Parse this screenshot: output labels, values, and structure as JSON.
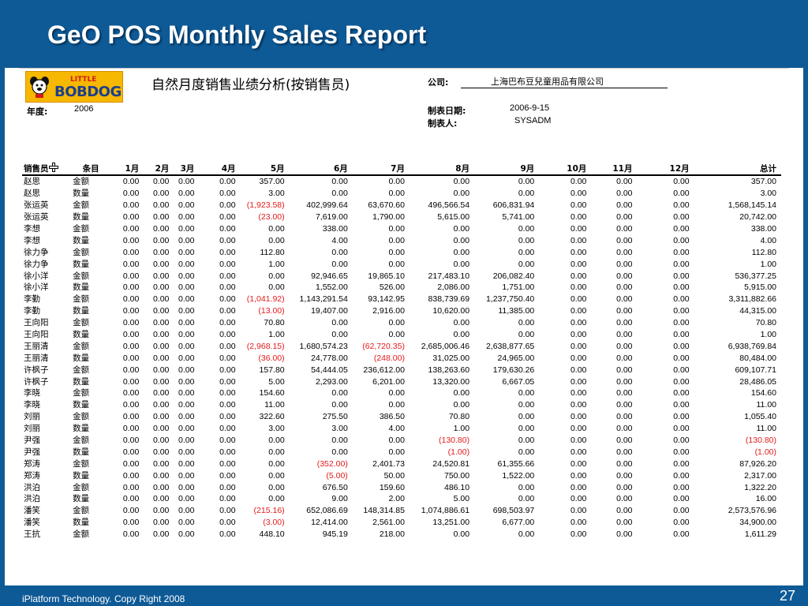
{
  "slide": {
    "title": "GeO POS Monthly Sales Report",
    "footer": "iPlatform Technology. Copy Right  2008",
    "page_number": "27",
    "colors": {
      "bar": "#0e5a96",
      "negative": "#e41b1b"
    }
  },
  "report": {
    "logo_little": "LITTLE",
    "logo_bobdog": "BOBDOG",
    "title": "自然月度销售业绩分析(按销售员)",
    "company_label": "公司:",
    "company_value": "上海巴布豆兒童用品有限公司",
    "year_label": "年度:",
    "year_value": "2006",
    "date_label": "制表日期:",
    "date_value": "2006-9-15",
    "maker_label": "制表人:",
    "maker_value": "SYSADM",
    "columns": [
      "销售员",
      "条目",
      "1月",
      "2月",
      "3月",
      "4月",
      "5月",
      "6月",
      "7月",
      "8月",
      "9月",
      "10月",
      "11月",
      "12月",
      "总计"
    ],
    "rows": [
      [
        "赵思",
        "金额",
        "0.00",
        "0.00",
        "0.00",
        "0.00",
        "357.00",
        "0.00",
        "0.00",
        "0.00",
        "0.00",
        "0.00",
        "0.00",
        "0.00",
        "357.00"
      ],
      [
        "赵思",
        "数量",
        "0.00",
        "0.00",
        "0.00",
        "0.00",
        "3.00",
        "0.00",
        "0.00",
        "0.00",
        "0.00",
        "0.00",
        "0.00",
        "0.00",
        "3.00"
      ],
      [
        "张运英",
        "金额",
        "0.00",
        "0.00",
        "0.00",
        "0.00",
        "(1,923.58)",
        "402,999.64",
        "63,670.60",
        "496,566.54",
        "606,831.94",
        "0.00",
        "0.00",
        "0.00",
        "1,568,145.14"
      ],
      [
        "张运英",
        "数量",
        "0.00",
        "0.00",
        "0.00",
        "0.00",
        "(23.00)",
        "7,619.00",
        "1,790.00",
        "5,615.00",
        "5,741.00",
        "0.00",
        "0.00",
        "0.00",
        "20,742.00"
      ],
      [
        "李想",
        "金额",
        "0.00",
        "0.00",
        "0.00",
        "0.00",
        "0.00",
        "338.00",
        "0.00",
        "0.00",
        "0.00",
        "0.00",
        "0.00",
        "0.00",
        "338.00"
      ],
      [
        "李想",
        "数量",
        "0.00",
        "0.00",
        "0.00",
        "0.00",
        "0.00",
        "4.00",
        "0.00",
        "0.00",
        "0.00",
        "0.00",
        "0.00",
        "0.00",
        "4.00"
      ],
      [
        "徐力争",
        "金额",
        "0.00",
        "0.00",
        "0.00",
        "0.00",
        "112.80",
        "0.00",
        "0.00",
        "0.00",
        "0.00",
        "0.00",
        "0.00",
        "0.00",
        "112.80"
      ],
      [
        "徐力争",
        "数量",
        "0.00",
        "0.00",
        "0.00",
        "0.00",
        "1.00",
        "0.00",
        "0.00",
        "0.00",
        "0.00",
        "0.00",
        "0.00",
        "0.00",
        "1.00"
      ],
      [
        "徐小洋",
        "金额",
        "0.00",
        "0.00",
        "0.00",
        "0.00",
        "0.00",
        "92,946.65",
        "19,865.10",
        "217,483.10",
        "206,082.40",
        "0.00",
        "0.00",
        "0.00",
        "536,377.25"
      ],
      [
        "徐小洋",
        "数量",
        "0.00",
        "0.00",
        "0.00",
        "0.00",
        "0.00",
        "1,552.00",
        "526.00",
        "2,086.00",
        "1,751.00",
        "0.00",
        "0.00",
        "0.00",
        "5,915.00"
      ],
      [
        "李勤",
        "金额",
        "0.00",
        "0.00",
        "0.00",
        "0.00",
        "(1,041.92)",
        "1,143,291.54",
        "93,142.95",
        "838,739.69",
        "1,237,750.40",
        "0.00",
        "0.00",
        "0.00",
        "3,311,882.66"
      ],
      [
        "李勤",
        "数量",
        "0.00",
        "0.00",
        "0.00",
        "0.00",
        "(13.00)",
        "19,407.00",
        "2,916.00",
        "10,620.00",
        "11,385.00",
        "0.00",
        "0.00",
        "0.00",
        "44,315.00"
      ],
      [
        "王向阳",
        "金额",
        "0.00",
        "0.00",
        "0.00",
        "0.00",
        "70.80",
        "0.00",
        "0.00",
        "0.00",
        "0.00",
        "0.00",
        "0.00",
        "0.00",
        "70.80"
      ],
      [
        "王向阳",
        "数量",
        "0.00",
        "0.00",
        "0.00",
        "0.00",
        "1.00",
        "0.00",
        "0.00",
        "0.00",
        "0.00",
        "0.00",
        "0.00",
        "0.00",
        "1.00"
      ],
      [
        "王丽清",
        "金额",
        "0.00",
        "0.00",
        "0.00",
        "0.00",
        "(2,968.15)",
        "1,680,574.23",
        "(62,720.35)",
        "2,685,006.46",
        "2,638,877.65",
        "0.00",
        "0.00",
        "0.00",
        "6,938,769.84"
      ],
      [
        "王丽清",
        "数量",
        "0.00",
        "0.00",
        "0.00",
        "0.00",
        "(36.00)",
        "24,778.00",
        "(248.00)",
        "31,025.00",
        "24,965.00",
        "0.00",
        "0.00",
        "0.00",
        "80,484.00"
      ],
      [
        "许枫子",
        "金额",
        "0.00",
        "0.00",
        "0.00",
        "0.00",
        "157.80",
        "54,444.05",
        "236,612.00",
        "138,263.60",
        "179,630.26",
        "0.00",
        "0.00",
        "0.00",
        "609,107.71"
      ],
      [
        "许枫子",
        "数量",
        "0.00",
        "0.00",
        "0.00",
        "0.00",
        "5.00",
        "2,293.00",
        "6,201.00",
        "13,320.00",
        "6,667.05",
        "0.00",
        "0.00",
        "0.00",
        "28,486.05"
      ],
      [
        "李晓",
        "金额",
        "0.00",
        "0.00",
        "0.00",
        "0.00",
        "154.60",
        "0.00",
        "0.00",
        "0.00",
        "0.00",
        "0.00",
        "0.00",
        "0.00",
        "154.60"
      ],
      [
        "李晓",
        "数量",
        "0.00",
        "0.00",
        "0.00",
        "0.00",
        "11.00",
        "0.00",
        "0.00",
        "0.00",
        "0.00",
        "0.00",
        "0.00",
        "0.00",
        "11.00"
      ],
      [
        "刘丽",
        "金额",
        "0.00",
        "0.00",
        "0.00",
        "0.00",
        "322.60",
        "275.50",
        "386.50",
        "70.80",
        "0.00",
        "0.00",
        "0.00",
        "0.00",
        "1,055.40"
      ],
      [
        "刘丽",
        "数量",
        "0.00",
        "0.00",
        "0.00",
        "0.00",
        "3.00",
        "3.00",
        "4.00",
        "1.00",
        "0.00",
        "0.00",
        "0.00",
        "0.00",
        "11.00"
      ],
      [
        "尹强",
        "金额",
        "0.00",
        "0.00",
        "0.00",
        "0.00",
        "0.00",
        "0.00",
        "0.00",
        "(130.80)",
        "0.00",
        "0.00",
        "0.00",
        "0.00",
        "(130.80)"
      ],
      [
        "尹强",
        "数量",
        "0.00",
        "0.00",
        "0.00",
        "0.00",
        "0.00",
        "0.00",
        "0.00",
        "(1.00)",
        "0.00",
        "0.00",
        "0.00",
        "0.00",
        "(1.00)"
      ],
      [
        "郑涛",
        "金额",
        "0.00",
        "0.00",
        "0.00",
        "0.00",
        "0.00",
        "(352.00)",
        "2,401.73",
        "24,520.81",
        "61,355.66",
        "0.00",
        "0.00",
        "0.00",
        "87,926.20"
      ],
      [
        "郑涛",
        "数量",
        "0.00",
        "0.00",
        "0.00",
        "0.00",
        "0.00",
        "(5.00)",
        "50.00",
        "750.00",
        "1,522.00",
        "0.00",
        "0.00",
        "0.00",
        "2,317.00"
      ],
      [
        "洪泊",
        "金额",
        "0.00",
        "0.00",
        "0.00",
        "0.00",
        "0.00",
        "676.50",
        "159.60",
        "486.10",
        "0.00",
        "0.00",
        "0.00",
        "0.00",
        "1,322.20"
      ],
      [
        "洪泊",
        "数量",
        "0.00",
        "0.00",
        "0.00",
        "0.00",
        "0.00",
        "9.00",
        "2.00",
        "5.00",
        "0.00",
        "0.00",
        "0.00",
        "0.00",
        "16.00"
      ],
      [
        "潘笑",
        "金额",
        "0.00",
        "0.00",
        "0.00",
        "0.00",
        "(215.16)",
        "652,086.69",
        "148,314.85",
        "1,074,886.61",
        "698,503.97",
        "0.00",
        "0.00",
        "0.00",
        "2,573,576.96"
      ],
      [
        "潘笑",
        "数量",
        "0.00",
        "0.00",
        "0.00",
        "0.00",
        "(3.00)",
        "12,414.00",
        "2,561.00",
        "13,251.00",
        "6,677.00",
        "0.00",
        "0.00",
        "0.00",
        "34,900.00"
      ],
      [
        "王抗",
        "金额",
        "0.00",
        "0.00",
        "0.00",
        "0.00",
        "448.10",
        "945.19",
        "218.00",
        "0.00",
        "0.00",
        "0.00",
        "0.00",
        "0.00",
        "1,611.29"
      ]
    ]
  }
}
